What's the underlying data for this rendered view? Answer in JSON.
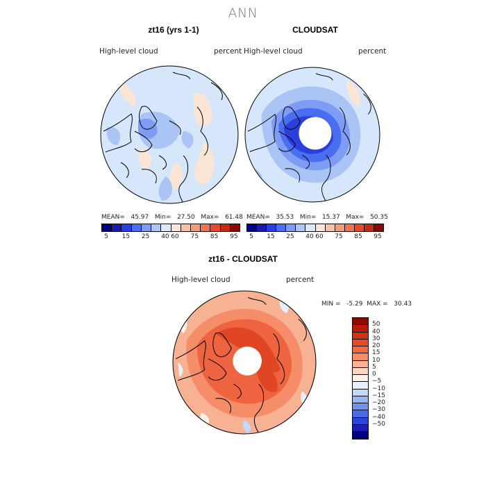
{
  "title": "ANN",
  "panels": [
    {
      "title": "zt16 (yrs 1-1)",
      "variable": "High-level  cloud",
      "units": "percent",
      "stats": {
        "mean_label": "MEAN=",
        "mean": "45.97",
        "min_label": "Min=",
        "min": "27.50",
        "max_label": "Max=",
        "max": "61.48"
      }
    },
    {
      "title": "CLOUDSAT",
      "variable": "High-level  cloud",
      "units": "percent",
      "stats": {
        "mean_label": "MEAN=",
        "mean": "35.53",
        "min_label": "Min=",
        "min": "15.37",
        "max_label": "Max=",
        "max": "50.35"
      }
    },
    {
      "title": "zt16 - CLOUDSAT",
      "variable": "High-level  cloud",
      "units": "percent",
      "stats": {
        "min_label": "MIN =",
        "min": "-5.29",
        "max_label": "MAX =",
        "max": "30.43"
      }
    }
  ],
  "colorbar_abs": {
    "ticks": [
      "5",
      "15",
      "25",
      "40",
      "60",
      "75",
      "85",
      "95"
    ],
    "colors": [
      "#000080",
      "#1a1ab0",
      "#2b3fdd",
      "#4a6ef0",
      "#7f9cf4",
      "#b0c6f8",
      "#dce8fb",
      "#fbe6d6",
      "#f8c2a2",
      "#f49c78",
      "#ef7350",
      "#e34a2a",
      "#c52a12",
      "#8b0a00"
    ]
  },
  "colorbar_diff": {
    "ticks": [
      "50",
      "40",
      "30",
      "20",
      "15",
      "10",
      "5",
      "0",
      "−5",
      "−10",
      "−15",
      "−20",
      "−30",
      "−40",
      "−50"
    ],
    "colors": [
      "#8b0a00",
      "#b81a05",
      "#d33210",
      "#ea4a22",
      "#f26a42",
      "#f58d68",
      "#f7b294",
      "#fad6c2",
      "#fdf1e8",
      "#e6f0fc",
      "#c4d8f8",
      "#98b6f2",
      "#6f92ee",
      "#4a6ae6",
      "#2b46d8",
      "#1a1fb2",
      "#000080"
    ]
  },
  "map_colors": {
    "light_blue": "#d6e6fb",
    "mid_blue": "#aac4f6",
    "blue": "#7f9cf4",
    "deep_blue": "#4a6ef0",
    "dark_blue": "#2b3fdd",
    "peach": "#fbe6d6",
    "orange_light": "#f7b294",
    "orange": "#f58d68",
    "orange_dark": "#ef6440",
    "red": "#e04624"
  }
}
